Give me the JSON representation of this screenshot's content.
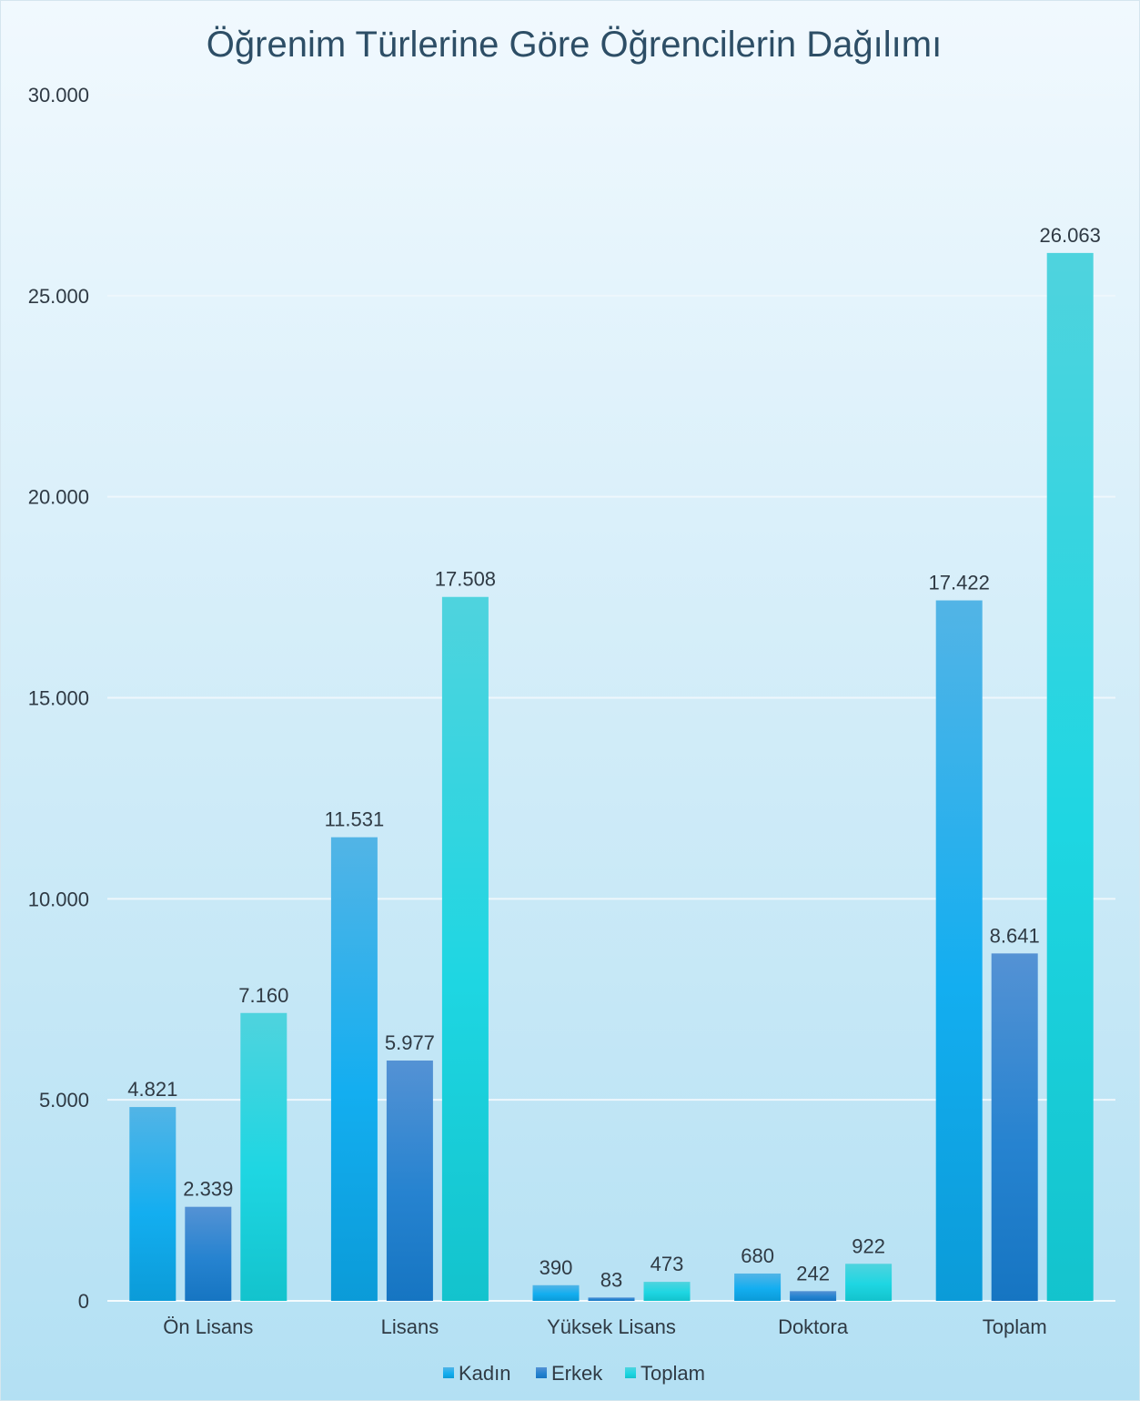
{
  "chart_data": {
    "type": "bar",
    "title": "Öğrenim Türlerine Göre Öğrencilerin Dağılımı",
    "xlabel": "",
    "ylabel": "",
    "categories": [
      "Ön Lisans",
      "Lisans",
      "Yüksek Lisans",
      "Doktora",
      "Toplam"
    ],
    "series": [
      {
        "name": "Kadın",
        "values": [
          4821,
          11531,
          390,
          680,
          17422
        ],
        "labels": [
          "4.821",
          "11.531",
          "390",
          "680",
          "17.422"
        ],
        "color_top": "#52b4e6",
        "color_mid": "#13aef0",
        "color_bottom": "#0b9bd8"
      },
      {
        "name": "Erkek",
        "values": [
          2339,
          5977,
          83,
          242,
          8641
        ],
        "labels": [
          "2.339",
          "5.977",
          "83",
          "242",
          "8.641"
        ],
        "color_top": "#5492d4",
        "color_mid": "#2683d0",
        "color_bottom": "#1675c2"
      },
      {
        "name": "Toplam",
        "values": [
          7160,
          17508,
          473,
          922,
          26063
        ],
        "labels": [
          "7.160",
          "17.508",
          "473",
          "922",
          "26.063"
        ],
        "color_top": "#4fd3de",
        "color_mid": "#1ed6e2",
        "color_bottom": "#13c3cd"
      }
    ],
    "ylim": [
      0,
      30000
    ],
    "yticks": [
      0,
      5000,
      10000,
      15000,
      20000,
      25000,
      30000
    ],
    "ytick_labels": [
      "0",
      "5.000",
      "10.000",
      "15.000",
      "20.000",
      "25.000",
      "30.000"
    ],
    "grid": true,
    "legend_position": "bottom",
    "colors": {
      "background_top": "#f1f9fe",
      "background_bottom": "#b3e0f3",
      "title": "#2d4e66",
      "text": "#2f3a44",
      "grid": "#eef7fc",
      "axis": "#f5fbfe"
    }
  }
}
